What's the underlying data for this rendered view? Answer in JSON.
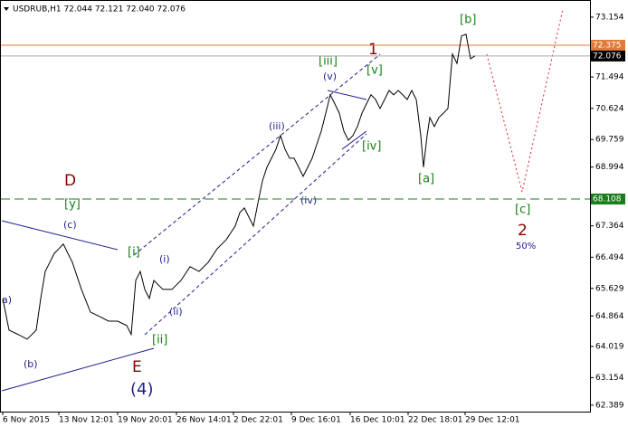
{
  "chart_data": {
    "type": "line",
    "title": "USDRUB,H1  72.044 72.121 72.040 72.076",
    "color": "#000000",
    "x": [
      0,
      7,
      17,
      27,
      37,
      42,
      47,
      52,
      57,
      62,
      67,
      72,
      77,
      87,
      97,
      107,
      117,
      127,
      137,
      142,
      147,
      152,
      157,
      162,
      167,
      177,
      187,
      197,
      207,
      217,
      227,
      237,
      247,
      257,
      262,
      267,
      272,
      277,
      282,
      287,
      292,
      297,
      302,
      307,
      312,
      317,
      322,
      327,
      332,
      337,
      342,
      347,
      352,
      357,
      362,
      367,
      372,
      377,
      382,
      387,
      392,
      397,
      402,
      407,
      412,
      417,
      422,
      427,
      432,
      437,
      442,
      447,
      452,
      457,
      462,
      465,
      469,
      472,
      477,
      482,
      487,
      492,
      497,
      502,
      507,
      512,
      517,
      522
    ],
    "values": [
      65.35,
      64.47,
      64.35,
      64.22,
      64.47,
      65.35,
      66.1,
      66.35,
      66.6,
      66.73,
      66.86,
      66.6,
      66.35,
      65.6,
      64.97,
      64.85,
      64.72,
      64.72,
      64.6,
      64.35,
      65.85,
      66.1,
      65.6,
      65.35,
      65.85,
      65.6,
      65.6,
      65.85,
      66.23,
      66.1,
      66.35,
      66.73,
      66.98,
      67.36,
      67.73,
      67.86,
      67.61,
      67.36,
      67.99,
      68.61,
      68.99,
      69.24,
      69.49,
      69.87,
      69.49,
      69.24,
      69.24,
      68.99,
      68.74,
      68.99,
      69.24,
      69.62,
      69.99,
      70.49,
      71.0,
      70.75,
      70.49,
      69.99,
      69.74,
      69.87,
      70.12,
      70.49,
      70.75,
      71.0,
      70.87,
      70.62,
      70.87,
      71.12,
      71.0,
      71.12,
      71.0,
      70.87,
      71.12,
      70.87,
      69.87,
      68.99,
      69.87,
      70.37,
      70.12,
      70.37,
      70.49,
      70.62,
      72.13,
      71.87,
      72.63,
      72.68,
      72.0,
      72.08
    ],
    "xlim": [
      0,
      649
    ],
    "xticks": [
      {
        "value": 0,
        "label": "6 Nov 2015"
      },
      {
        "value": 62,
        "label": "13 Nov 12:01"
      },
      {
        "value": 127,
        "label": "19 Nov 20:01"
      },
      {
        "value": 192,
        "label": "26 Nov 14:01"
      },
      {
        "value": 255,
        "label": "2 Dec 22:01"
      },
      {
        "value": 319,
        "label": "9 Dec 16:01"
      },
      {
        "value": 384,
        "label": "16 Dec 10:01"
      },
      {
        "value": 448,
        "label": "22 Dec 18:01"
      },
      {
        "value": 511,
        "label": "29 Dec 12:01"
      }
    ],
    "ylim": [
      62.21,
      73.63
    ],
    "yticks": [
      73.154,
      71.494,
      70.624,
      69.759,
      68.994,
      67.364,
      66.494,
      65.629,
      64.864,
      64.019,
      63.154,
      62.389
    ],
    "levels": [
      {
        "value": 72.375,
        "color": "#e07b39"
      },
      {
        "value": 72.076,
        "color": "#000000"
      },
      {
        "value": 68.108,
        "color": "#1a7f1a"
      }
    ],
    "annotations": [
      "[b]",
      "1",
      "[iii]",
      "[v]",
      "(v)",
      "(iii)",
      "[iv]",
      "[a]",
      "(iv)",
      "D",
      "[y]",
      "(c)",
      "[c]",
      "2",
      "50%",
      "[i]",
      "(i)",
      "(ii)",
      "a)",
      "[ii]",
      "(b)",
      "E",
      "(4)"
    ]
  }
}
